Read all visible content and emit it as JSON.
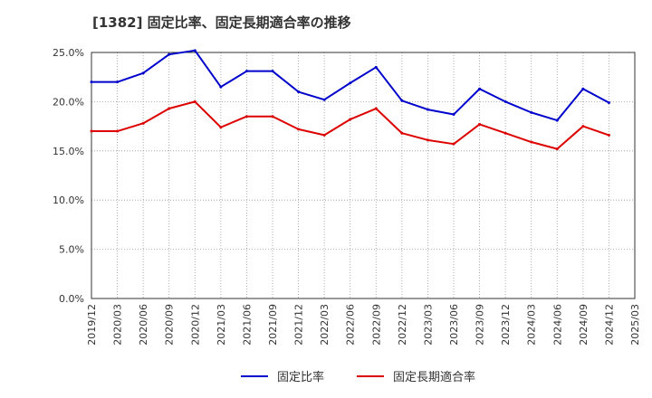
{
  "chart_data": {
    "type": "line",
    "title": "[1382]  固定比率、固定長期適合率の推移",
    "xlabel": "",
    "ylabel": "",
    "ylim": [
      0,
      25
    ],
    "yticks": [
      "0.0%",
      "5.0%",
      "10.0%",
      "15.0%",
      "20.0%",
      "25.0%"
    ],
    "categories": [
      "2019/12",
      "2020/03",
      "2020/06",
      "2020/09",
      "2020/12",
      "2021/03",
      "2021/06",
      "2021/09",
      "2021/12",
      "2022/03",
      "2022/06",
      "2022/09",
      "2022/12",
      "2023/03",
      "2023/06",
      "2023/09",
      "2023/12",
      "2024/03",
      "2024/06",
      "2024/09",
      "2024/12",
      "2025/03"
    ],
    "series": [
      {
        "name": "固定比率",
        "color": "#0000cc",
        "values": [
          22.0,
          22.0,
          22.9,
          24.8,
          25.2,
          21.5,
          23.1,
          23.1,
          21.0,
          20.2,
          21.9,
          23.5,
          20.1,
          19.2,
          18.7,
          21.3,
          20.0,
          18.9,
          18.1,
          21.3,
          19.9,
          null
        ]
      },
      {
        "name": "固定長期適合率",
        "color": "#dd0000",
        "values": [
          17.0,
          17.0,
          17.8,
          19.3,
          20.0,
          17.4,
          18.5,
          18.5,
          17.2,
          16.6,
          18.2,
          19.3,
          16.8,
          16.1,
          15.7,
          17.7,
          16.8,
          15.9,
          15.2,
          17.5,
          16.6,
          null
        ]
      }
    ],
    "legend_position": "bottom",
    "grid": true
  }
}
